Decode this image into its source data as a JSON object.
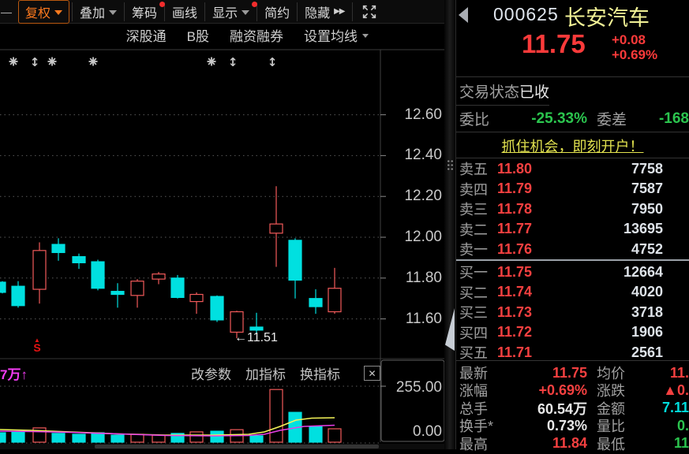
{
  "toolbar": {
    "dash": "—",
    "buttons": [
      {
        "label": "复权"
      },
      {
        "label": "叠加"
      },
      {
        "label": "筹码"
      },
      {
        "label": "画线"
      },
      {
        "label": "显示"
      },
      {
        "label": "简约"
      },
      {
        "label": "隐藏"
      }
    ],
    "hide_chevrons": "▶▶"
  },
  "subbar": {
    "items": [
      "深股通",
      "B股",
      "融资融券",
      "设置均线"
    ]
  },
  "chart": {
    "annotation_text": "←11.51",
    "signal_triangle": "▲",
    "signal_letter": "S",
    "pane2_left_label": "7万↑",
    "pane2_actions": [
      "改参数",
      "加指标",
      "换指标"
    ],
    "pane2_close": "✕"
  },
  "colors": {
    "up_candle": "#f25a5a",
    "down_candle": "#00e0e0",
    "price_red": "#f54040",
    "green": "#2bc44e",
    "cyan": "#00dcdc",
    "name_yellow": "#f2f296",
    "ad_yellow": "#e3e34f",
    "ma_yellow": "#f5f559",
    "ma_magenta": "#e83ee8"
  },
  "chart_data": [
    {
      "type": "candlestick",
      "yticks": [
        "12.60",
        "12.40",
        "12.20",
        "12.00",
        "11.80",
        "11.60"
      ],
      "tick_prices": [
        12.6,
        12.4,
        12.2,
        12.0,
        11.8,
        11.6
      ],
      "ylim": [
        11.45,
        12.72
      ],
      "annotation": {
        "text": "←11.51",
        "price": 11.51
      },
      "markers": [
        {
          "x": 17,
          "type": "burst"
        },
        {
          "x": 44,
          "type": "updown"
        },
        {
          "x": 66,
          "type": "burst"
        },
        {
          "x": 118,
          "type": "burst"
        },
        {
          "x": 268,
          "type": "burst"
        },
        {
          "x": 295,
          "type": "updown"
        },
        {
          "x": 345,
          "type": "updown"
        }
      ],
      "candles": [
        {
          "x": 3,
          "w": 8,
          "o": 11.78,
          "h": 11.785,
          "l": 11.725,
          "c": 11.73,
          "dir": "down"
        },
        {
          "x": 23,
          "o": 11.76,
          "h": 11.785,
          "l": 11.655,
          "c": 11.665,
          "dir": "down"
        },
        {
          "x": 50,
          "o": 11.745,
          "h": 11.975,
          "l": 11.675,
          "c": 11.935,
          "dir": "up"
        },
        {
          "x": 74,
          "o": 11.965,
          "h": 11.995,
          "l": 11.885,
          "c": 11.925,
          "dir": "down"
        },
        {
          "x": 100,
          "o": 11.905,
          "h": 11.92,
          "l": 11.845,
          "c": 11.875,
          "dir": "down"
        },
        {
          "x": 124,
          "o": 11.88,
          "h": 11.89,
          "l": 11.74,
          "c": 11.75,
          "dir": "down"
        },
        {
          "x": 149,
          "o": 11.735,
          "h": 11.775,
          "l": 11.655,
          "c": 11.72,
          "dir": "down"
        },
        {
          "x": 174,
          "o": 11.715,
          "h": 11.795,
          "l": 11.655,
          "c": 11.785,
          "dir": "up"
        },
        {
          "x": 201,
          "o": 11.795,
          "h": 11.83,
          "l": 11.77,
          "c": 11.82,
          "dir": "up"
        },
        {
          "x": 225,
          "o": 11.8,
          "h": 11.815,
          "l": 11.7,
          "c": 11.705,
          "dir": "down"
        },
        {
          "x": 249,
          "o": 11.685,
          "h": 11.73,
          "l": 11.625,
          "c": 11.72,
          "dir": "up"
        },
        {
          "x": 275,
          "o": 11.71,
          "h": 11.715,
          "l": 11.585,
          "c": 11.595,
          "dir": "down"
        },
        {
          "x": 300,
          "o": 11.535,
          "h": 11.64,
          "l": 11.505,
          "c": 11.635,
          "dir": "up"
        },
        {
          "x": 325,
          "o": 11.56,
          "h": 11.63,
          "l": 11.53,
          "c": 11.545,
          "dir": "down"
        },
        {
          "x": 350,
          "o": 12.02,
          "h": 12.25,
          "l": 11.855,
          "c": 12.065,
          "dir": "up"
        },
        {
          "x": 374,
          "o": 11.985,
          "h": 11.995,
          "l": 11.7,
          "c": 11.79,
          "dir": "down"
        },
        {
          "x": 400,
          "o": 11.7,
          "h": 11.745,
          "l": 11.625,
          "c": 11.66,
          "dir": "down"
        },
        {
          "x": 424,
          "o": 11.635,
          "h": 11.85,
          "l": 11.625,
          "c": 11.75,
          "dir": "up"
        }
      ]
    },
    {
      "type": "bar",
      "name": "volume",
      "yticks": [
        "255.00",
        "0.00"
      ],
      "ylim": [
        0,
        255
      ],
      "values": [
        43,
        47,
        65,
        40,
        36,
        43,
        32,
        36,
        32,
        40,
        47,
        50,
        57,
        29,
        240,
        136,
        72,
        61
      ],
      "dirs": [
        "down",
        "down",
        "up",
        "down",
        "down",
        "down",
        "down",
        "up",
        "up",
        "down",
        "up",
        "down",
        "up",
        "down",
        "up",
        "down",
        "down",
        "up"
      ],
      "ma_yellow": [
        [
          0,
          545
        ],
        [
          40,
          546
        ],
        [
          90,
          548
        ],
        [
          150,
          550.5
        ],
        [
          210,
          552
        ],
        [
          270,
          552
        ],
        [
          315,
          551
        ],
        [
          335,
          548
        ],
        [
          355,
          541
        ],
        [
          375,
          533
        ],
        [
          395,
          530.5
        ],
        [
          424,
          530
        ]
      ],
      "ma_magenta": [
        [
          0,
          547
        ],
        [
          40,
          547.5
        ],
        [
          90,
          548.5
        ],
        [
          150,
          550.5
        ],
        [
          210,
          552.5
        ],
        [
          270,
          553
        ],
        [
          315,
          552.5
        ],
        [
          335,
          551
        ],
        [
          355,
          546
        ],
        [
          385,
          541
        ],
        [
          424,
          539.5
        ]
      ]
    }
  ],
  "quote": {
    "code": "000625",
    "name": "长安汽车",
    "price": "11.75",
    "change": "+0.08",
    "change_pct": "+0.69%",
    "status_label": "交易状态",
    "status_value": "已收",
    "weibi_label": "委比",
    "weibi_value": "-25.33%",
    "weicha_label": "委差",
    "weicha_value": "-168",
    "ad_text": "抓住机会，即刻开户！",
    "asks": [
      {
        "label": "卖五",
        "price": "11.80",
        "vol": "7758"
      },
      {
        "label": "卖四",
        "price": "11.79",
        "vol": "7587"
      },
      {
        "label": "卖三",
        "price": "11.78",
        "vol": "7950"
      },
      {
        "label": "卖二",
        "price": "11.77",
        "vol": "13695"
      },
      {
        "label": "卖一",
        "price": "11.76",
        "vol": "4752"
      }
    ],
    "bids": [
      {
        "label": "买一",
        "price": "11.75",
        "vol": "12664"
      },
      {
        "label": "买二",
        "price": "11.74",
        "vol": "4020"
      },
      {
        "label": "买三",
        "price": "11.73",
        "vol": "3718"
      },
      {
        "label": "买四",
        "price": "11.72",
        "vol": "1906"
      },
      {
        "label": "买五",
        "price": "11.71",
        "vol": "2561"
      }
    ],
    "stats": [
      {
        "l1": "最新",
        "v1": "11.75",
        "l2": "均价",
        "v2": "11."
      },
      {
        "l1": "涨幅",
        "v1": "+0.69%",
        "l2": "涨跌",
        "v2": "▲0."
      },
      {
        "l1": "总手",
        "v1": "60.54万",
        "l2": "金额",
        "v2": "7.11"
      },
      {
        "l1": "换手*",
        "v1": "0.73%",
        "l2": "量比",
        "v2": "0."
      },
      {
        "l1": "最高",
        "v1": "11.84",
        "l2": "最低",
        "v2": "11"
      }
    ]
  }
}
